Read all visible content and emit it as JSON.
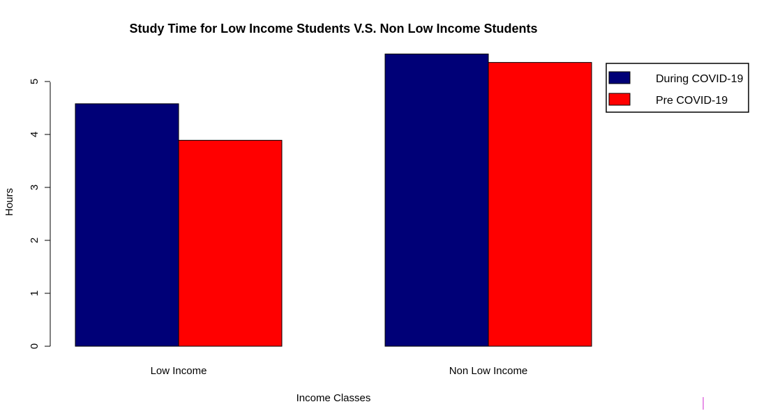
{
  "chart_data": {
    "type": "bar",
    "title": "Study Time for Low Income Students V.S. Non Low Income Students",
    "xlabel": "Income Classes",
    "ylabel": "Hours",
    "categories": [
      "Low Income",
      "Non Low Income"
    ],
    "series": [
      {
        "name": "During COVID-19",
        "color": "#000077",
        "values": [
          4.58,
          5.52
        ]
      },
      {
        "name": "Pre COVID-19",
        "color": "#ff0000",
        "values": [
          3.89,
          5.36
        ]
      }
    ],
    "yticks": [
      "0",
      "1",
      "2",
      "3",
      "4",
      "5"
    ],
    "ylim": [
      0,
      5.6
    ],
    "grid": false,
    "legend_position": "top-right"
  }
}
